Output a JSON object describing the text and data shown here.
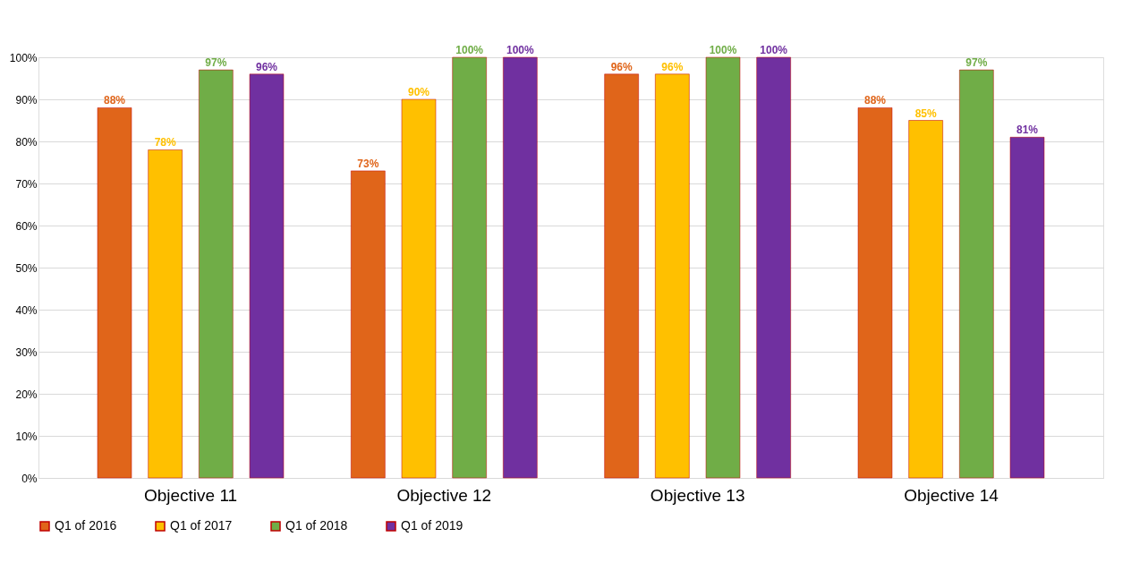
{
  "chart_data": {
    "type": "bar",
    "categories": [
      "Objective 11",
      "Objective 12",
      "Objective 13",
      "Objective 14"
    ],
    "series": [
      {
        "name": "Q1 of 2016",
        "color": "#e0651a",
        "values": [
          88,
          73,
          96,
          88
        ],
        "value_labels": [
          "88%",
          "73%",
          "96%",
          "88%"
        ]
      },
      {
        "name": "Q1 of 2017",
        "color": "#ffc000",
        "values": [
          78,
          90,
          96,
          85
        ],
        "value_labels": [
          "78%",
          "90%",
          "96%",
          "85%"
        ]
      },
      {
        "name": "Q1 of 2018",
        "color": "#70ad47",
        "values": [
          97,
          100,
          100,
          97
        ],
        "value_labels": [
          "97%",
          "100%",
          "100%",
          "97%"
        ]
      },
      {
        "name": "Q1 of 2019",
        "color": "#7030a0",
        "values": [
          96,
          100,
          100,
          81
        ],
        "value_labels": [
          "96%",
          "100%",
          "100%",
          "81%"
        ]
      }
    ],
    "ylim": [
      0,
      100
    ],
    "yticks": [
      {
        "value": 0,
        "label": "0%"
      },
      {
        "value": 10,
        "label": "10%"
      },
      {
        "value": 20,
        "label": "20%"
      },
      {
        "value": 30,
        "label": "30%"
      },
      {
        "value": 40,
        "label": "40%"
      },
      {
        "value": 50,
        "label": "50%"
      },
      {
        "value": 60,
        "label": "60%"
      },
      {
        "value": 70,
        "label": "70%"
      },
      {
        "value": 80,
        "label": "80%"
      },
      {
        "value": 90,
        "label": "90%"
      },
      {
        "value": 100,
        "label": "100%"
      }
    ],
    "grid": "y",
    "legend": "bottom"
  }
}
